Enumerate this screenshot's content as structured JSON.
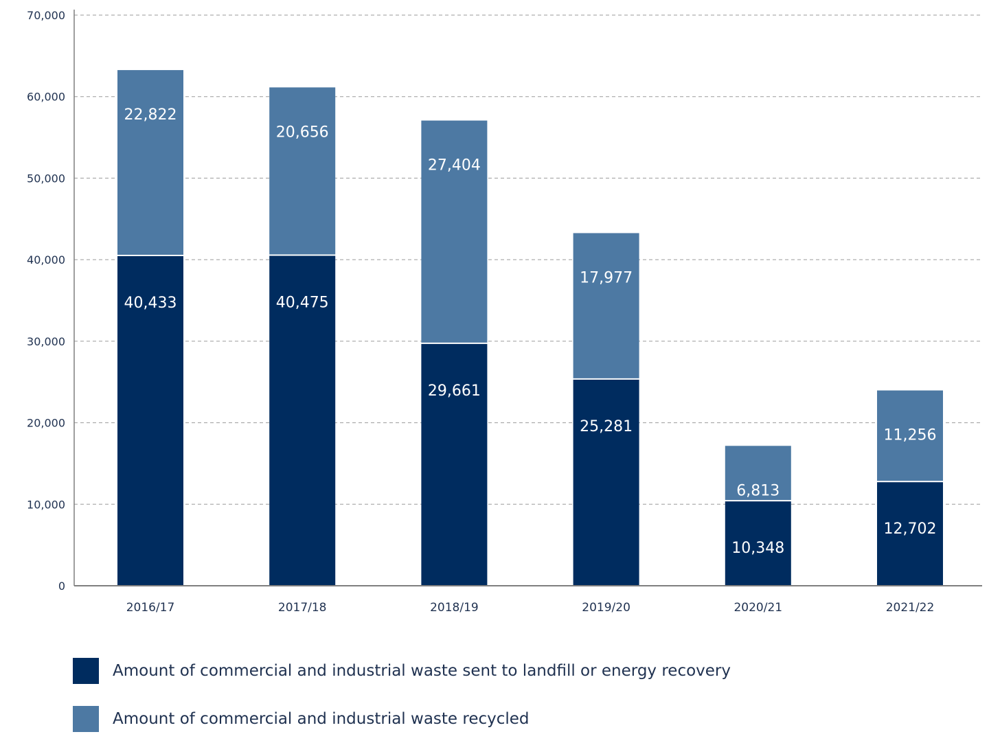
{
  "chart_data": {
    "type": "bar",
    "stacked": true,
    "categories": [
      "2016/17",
      "2017/18",
      "2018/19",
      "2019/20",
      "2020/21",
      "2021/22"
    ],
    "series": [
      {
        "name": "Amount of commercial and industrial waste sent to landfill or energy recovery",
        "values": [
          40433,
          40475,
          29661,
          25281,
          10348,
          12702
        ],
        "labels": [
          "40,433",
          "40,475",
          "29,661",
          "25,281",
          "10,348",
          "12,702"
        ],
        "color": "#002c5f"
      },
      {
        "name": "Amount of commercial and industrial waste recycled",
        "values": [
          22822,
          20656,
          27404,
          17977,
          6813,
          11256
        ],
        "labels": [
          "22,822",
          "20,656",
          "27,404",
          "17,977",
          "6,813",
          "11,256"
        ],
        "color": "#4d79a3"
      }
    ],
    "yticks": [
      0,
      10000,
      20000,
      30000,
      40000,
      50000,
      60000,
      70000
    ],
    "ytick_labels": [
      "0",
      "10,000",
      "20,000",
      "30,000",
      "40,000",
      "50,000",
      "60,000",
      "70,000"
    ],
    "ylim": [
      0,
      70000
    ],
    "grid": true,
    "legend_position": "bottom-left"
  }
}
